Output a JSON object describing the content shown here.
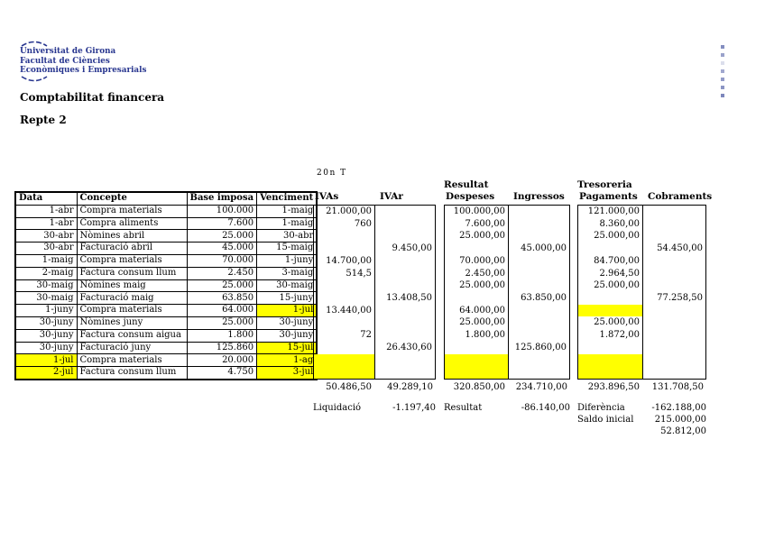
{
  "logo": {
    "line1": "Universitat de Girona",
    "line2": "Facultat de Ciències",
    "line3": "Econòmiques i Empresarials",
    "color": "#28368f"
  },
  "page": {
    "title": "Comptabilitat financera",
    "subtitle": "Repte 2",
    "period_label": "20n T"
  },
  "colors": {
    "highlight": "#ffff00",
    "logo_blue": "#28368f",
    "text": "#000000"
  },
  "main_table": {
    "headers": [
      "Data",
      "Concepte",
      "Base imposa",
      "Venciment"
    ],
    "rows": [
      {
        "data": "1-abr",
        "concepte": "Compra materials",
        "base": "100.000",
        "venciment": "1-maig",
        "hl_data": false,
        "hl_venc": false
      },
      {
        "data": "1-abr",
        "concepte": "Compra aliments",
        "base": "7.600",
        "venciment": "1-maig",
        "hl_data": false,
        "hl_venc": false
      },
      {
        "data": "30-abr",
        "concepte": "Nòmines abril",
        "base": "25.000",
        "venciment": "30-abr",
        "hl_data": false,
        "hl_venc": false
      },
      {
        "data": "30-abr",
        "concepte": "Facturació abril",
        "base": "45.000",
        "venciment": "15-maig",
        "hl_data": false,
        "hl_venc": false
      },
      {
        "data": "1-maig",
        "concepte": "Compra materials",
        "base": "70.000",
        "venciment": "1-juny",
        "hl_data": false,
        "hl_venc": false
      },
      {
        "data": "2-maig",
        "concepte": "Factura consum llum",
        "base": "2.450",
        "venciment": "3-maig",
        "hl_data": false,
        "hl_venc": false
      },
      {
        "data": "30-maig",
        "concepte": "Nòmines maig",
        "base": "25.000",
        "venciment": "30-maig",
        "hl_data": false,
        "hl_venc": false
      },
      {
        "data": "30-maig",
        "concepte": "Facturació maig",
        "base": "63.850",
        "venciment": "15-juny",
        "hl_data": false,
        "hl_venc": false
      },
      {
        "data": "1-juny",
        "concepte": "Compra materials",
        "base": "64.000",
        "venciment": "1-jul",
        "hl_data": false,
        "hl_venc": true
      },
      {
        "data": "30-juny",
        "concepte": "Nòmines juny",
        "base": "25.000",
        "venciment": "30-juny",
        "hl_data": false,
        "hl_venc": false
      },
      {
        "data": "30-juny",
        "concepte": "Factura consum aigua",
        "base": "1.800",
        "venciment": "30-juny",
        "hl_data": false,
        "hl_venc": false
      },
      {
        "data": "30-juny",
        "concepte": "Facturació juny",
        "base": "125.860",
        "venciment": "15-jul",
        "hl_data": false,
        "hl_venc": true
      },
      {
        "data": "1-jul",
        "concepte": "Compra materials",
        "base": "20.000",
        "venciment": "1-ag",
        "hl_data": true,
        "hl_venc": true
      },
      {
        "data": "2-jul",
        "concepte": "Factura consum llum",
        "base": "4.750",
        "venciment": "3-jul",
        "hl_data": true,
        "hl_venc": true
      }
    ]
  },
  "t_accounts": [
    {
      "name": "iva",
      "title": "",
      "left_header": "IVAs",
      "right_header": "IVAr",
      "rows": [
        {
          "left": "21.000,00"
        },
        {
          "left": "760"
        },
        {},
        {
          "right": "9.450,00"
        },
        {
          "left": "14.700,00"
        },
        {
          "left": "514,5"
        },
        {},
        {
          "right": "13.408,50"
        },
        {
          "left": "13.440,00"
        },
        {},
        {
          "left": "72"
        },
        {
          "right": "26.430,60"
        },
        {
          "hl_left": true
        },
        {
          "hl_left": true
        }
      ],
      "left_total": "50.486,50",
      "right_total": "49.289,10",
      "summary": [
        {
          "label": "Liquidació",
          "value": "-1.197,40"
        }
      ]
    },
    {
      "name": "resultat",
      "title": "Resultat",
      "left_header": "Despeses",
      "right_header": "Ingressos",
      "rows": [
        {
          "left": "100.000,00"
        },
        {
          "left": "7.600,00"
        },
        {
          "left": "25.000,00"
        },
        {
          "right": "45.000,00"
        },
        {
          "left": "70.000,00"
        },
        {
          "left": "2.450,00"
        },
        {
          "left": "25.000,00"
        },
        {
          "right": "63.850,00"
        },
        {
          "left": "64.000,00"
        },
        {
          "left": "25.000,00"
        },
        {
          "left": "1.800,00"
        },
        {
          "right": "125.860,00"
        },
        {
          "hl_left": true
        },
        {
          "hl_left": true
        }
      ],
      "left_total": "320.850,00",
      "right_total": "234.710,00",
      "summary": [
        {
          "label": "Resultat",
          "value": "-86.140,00"
        }
      ]
    },
    {
      "name": "tresoreria",
      "title": "Tresoreria",
      "left_header": "Pagaments",
      "right_header": "Cobraments",
      "rows": [
        {
          "left": "121.000,00"
        },
        {
          "left": "8.360,00"
        },
        {
          "left": "25.000,00"
        },
        {
          "right": "54.450,00"
        },
        {
          "left": "84.700,00"
        },
        {
          "left": "2.964,50"
        },
        {
          "left": "25.000,00"
        },
        {
          "right": "77.258,50"
        },
        {
          "hl_left": true
        },
        {
          "left": "25.000,00"
        },
        {
          "left": "1.872,00"
        },
        {},
        {
          "hl_left": true
        },
        {
          "hl_left": true
        }
      ],
      "left_total": "293.896,50",
      "right_total": "131.708,50",
      "summary": [
        {
          "label": "Diferència",
          "value": "-162.188,00"
        },
        {
          "label": "Saldo inicial",
          "value": "215.000,00"
        },
        {
          "label": "",
          "value": "52.812,00"
        }
      ]
    }
  ],
  "side_marks": {
    "color": "#6f7ab5",
    "opacities": [
      0.85,
      0.7,
      0.25,
      0.65,
      0.75,
      0.8,
      0.9
    ]
  }
}
